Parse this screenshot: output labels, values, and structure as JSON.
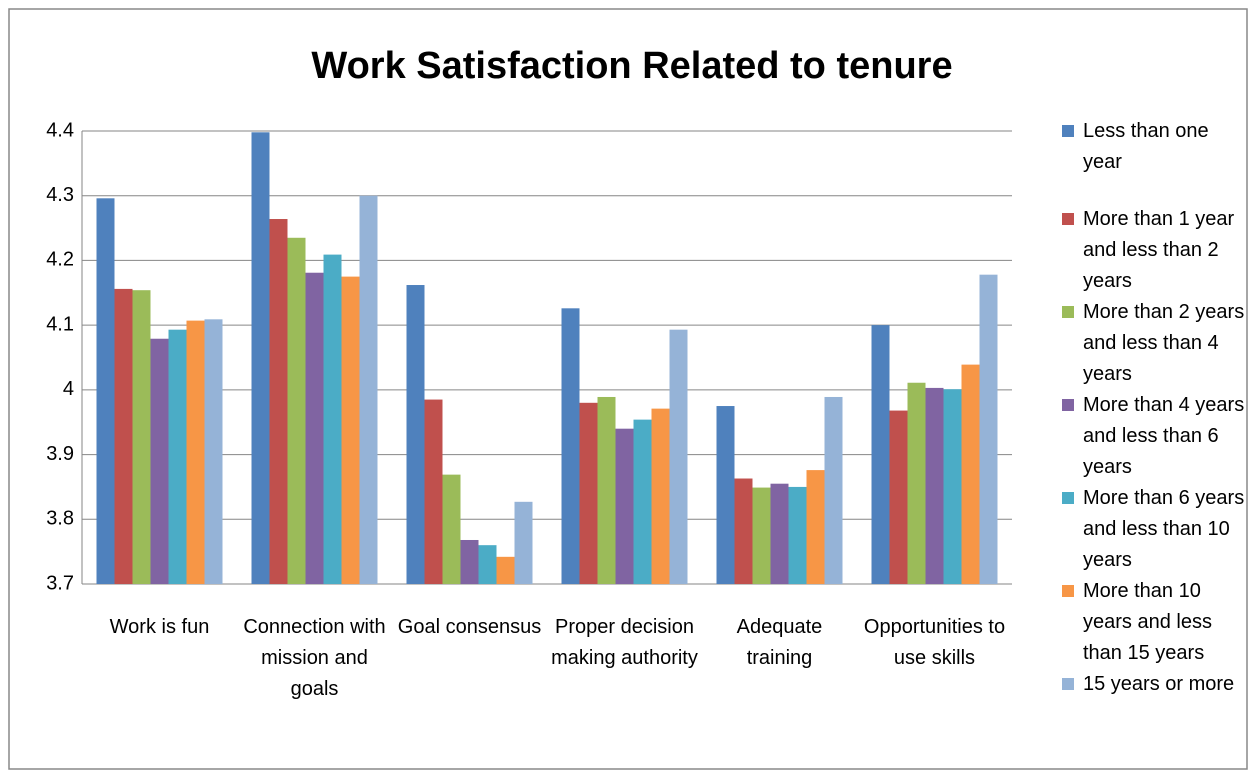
{
  "chart_data": {
    "type": "bar",
    "title": "Work Satisfaction Related to tenure",
    "categories": [
      "Work is fun",
      "Connection with mission and goals",
      "Goal consensus",
      "Proper decision making authority",
      "Adequate training",
      "Opportunities to use skills"
    ],
    "series": [
      {
        "name": "Less than one year",
        "color": "#4f81bd",
        "values": [
          4.296,
          4.398,
          4.162,
          4.126,
          3.975,
          4.1
        ]
      },
      {
        "name": "More than 1 year and less than 2 years",
        "color": "#c0504d",
        "values": [
          4.156,
          4.264,
          3.985,
          3.98,
          3.863,
          3.968
        ]
      },
      {
        "name": "More than 2 years and less than 4 years",
        "color": "#9bbb59",
        "values": [
          4.154,
          4.235,
          3.869,
          3.989,
          3.849,
          4.011
        ]
      },
      {
        "name": "More than 4 years and less than 6 years",
        "color": "#8064a2",
        "values": [
          4.079,
          4.181,
          3.768,
          3.94,
          3.855,
          4.003
        ]
      },
      {
        "name": "More than 6 years and less than 10 years",
        "color": "#4bacc6",
        "values": [
          4.093,
          4.209,
          3.76,
          3.954,
          3.85,
          4.001
        ]
      },
      {
        "name": "More than 10 years and less than 15 years",
        "color": "#f79646",
        "values": [
          4.107,
          4.175,
          3.742,
          3.971,
          3.876,
          4.039
        ]
      },
      {
        "name": "15 years or more",
        "color": "#95b3d7",
        "values": [
          4.109,
          4.3,
          3.827,
          4.093,
          3.989,
          4.178
        ]
      }
    ],
    "ylim": [
      3.7,
      4.4
    ],
    "yticks": [
      3.7,
      3.8,
      3.9,
      4,
      4.1,
      4.2,
      4.3,
      4.4
    ],
    "grid": true,
    "legend": "right"
  }
}
